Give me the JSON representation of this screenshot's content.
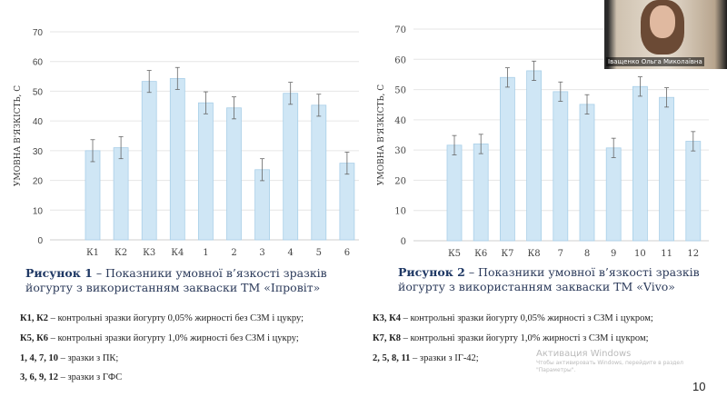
{
  "chart_data": [
    {
      "type": "bar",
      "ylabel": "УМОВНА В'ЯЗКІСТЬ, С",
      "ylim": [
        0,
        70
      ],
      "yticks": [
        0,
        10,
        20,
        30,
        40,
        50,
        60,
        70
      ],
      "grid": true,
      "categories": [
        "К1",
        "К2",
        "К3",
        "К4",
        "1",
        "2",
        "3",
        "4",
        "5",
        "6"
      ],
      "values": [
        30,
        31,
        53.3,
        54.3,
        46.1,
        44.4,
        23.6,
        49.3,
        45.3,
        25.8
      ],
      "errors": [
        3.7,
        3.7,
        3.7,
        3.7,
        3.7,
        3.7,
        3.7,
        3.7,
        3.7,
        3.7
      ],
      "bar_color": "#cfe6f5"
    },
    {
      "type": "bar",
      "ylabel": "УМОВНА В'ЯЗКІСТЬ, С",
      "ylim": [
        0,
        70
      ],
      "yticks": [
        0,
        10,
        20,
        30,
        40,
        50,
        60,
        70
      ],
      "grid": true,
      "categories": [
        "К5",
        "К6",
        "К7",
        "К8",
        "7",
        "8",
        "9",
        "10",
        "11",
        "12"
      ],
      "values": [
        31.6,
        32,
        54,
        56.2,
        49.3,
        45.1,
        30.7,
        51,
        47.4,
        32.9
      ],
      "errors": [
        3.2,
        3.2,
        3.2,
        3.2,
        3.2,
        3.2,
        3.2,
        3.2,
        3.2,
        3.2
      ],
      "bar_color": "#cfe6f5"
    }
  ],
  "captions": [
    {
      "label": "Рисунок 1",
      "text": " – Показники умовної в’язкості зразків йогурту з використанням закваски ТМ «Іпровіт»"
    },
    {
      "label": "Рисунок 2",
      "text": " – Показники умовної в’язкості зразків йогурту з використанням закваски ТМ «Vivo»"
    }
  ],
  "legend": [
    {
      "key": "К1, К2",
      "text": " – контрольні зразки  йогурту 0,05% жирності без СЗМ і цукру;"
    },
    {
      "key": "К3, К4",
      "text": " – контрольні зразки йогурту 0,05% жирності з СЗМ і цукром;"
    },
    {
      "key": "К5, К6",
      "text": " – контрольні зразки йогурту 1,0% жирності без СЗМ і цукру;"
    },
    {
      "key": "К7, К8",
      "text": " – контрольні зразки йогурту 1,0% жирності з СЗМ і цукром;"
    },
    {
      "key": "1, 4, 7, 10",
      "text": " – зразки з ПК;"
    },
    {
      "key": "2, 5, 8, 11",
      "text": " – зразки з ІГ-42;"
    },
    {
      "key": "3, 6, 9, 12",
      "text": " – зразки з ГФС"
    }
  ],
  "webcam": {
    "name": "Іващенко Ольга Миколаївна"
  },
  "watermark": {
    "title": "Активация Windows",
    "text": "Чтобы активировать Windows, перейдите в раздел \"Параметры\"."
  },
  "page_number": "10"
}
